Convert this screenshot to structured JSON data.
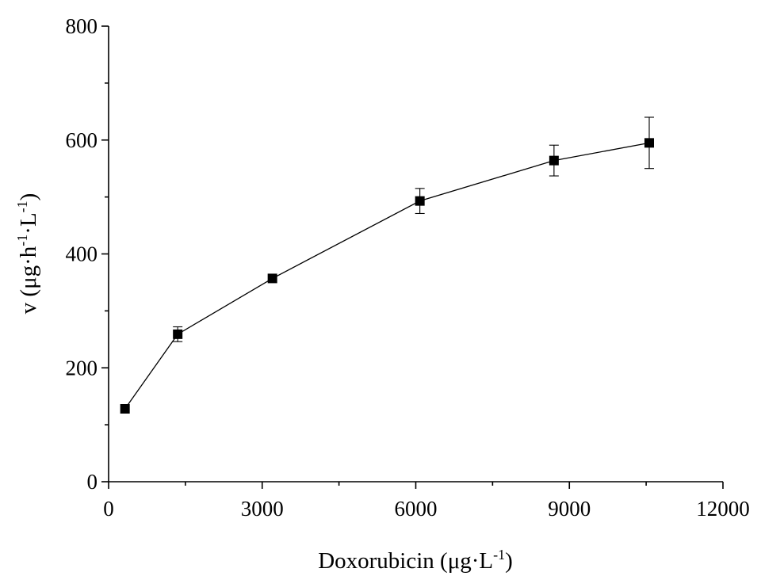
{
  "chart_data": {
    "type": "scatter",
    "xlabel_parts": [
      "Doxorubicin (μg·L",
      "-1",
      ")"
    ],
    "ylabel_parts": [
      "v (μg·h",
      "-1",
      "·L",
      "-1",
      ")"
    ],
    "xlim": [
      0,
      12000
    ],
    "ylim": [
      0,
      800
    ],
    "x_major_ticks": [
      0,
      3000,
      6000,
      9000,
      12000
    ],
    "x_tick_labels": [
      "0",
      "3000",
      "6000",
      "9000",
      "12000"
    ],
    "x_minor_ticks": [
      1500,
      4500,
      7500,
      10500
    ],
    "y_major_ticks": [
      0,
      200,
      400,
      600,
      800
    ],
    "y_tick_labels": [
      "0",
      "200",
      "400",
      "600",
      "800"
    ],
    "y_minor_ticks": [
      100,
      300,
      500,
      700
    ],
    "grid": false,
    "legend": "none",
    "connected_line": true,
    "marker": "square",
    "color": "#000000",
    "points": [
      {
        "x": 320,
        "y": 128,
        "err": 0
      },
      {
        "x": 1350,
        "y": 259,
        "err": 13
      },
      {
        "x": 3200,
        "y": 357,
        "err": 0
      },
      {
        "x": 6080,
        "y": 493,
        "err": 22
      },
      {
        "x": 8700,
        "y": 564,
        "err": 27
      },
      {
        "x": 10560,
        "y": 595,
        "err": 45
      }
    ]
  }
}
